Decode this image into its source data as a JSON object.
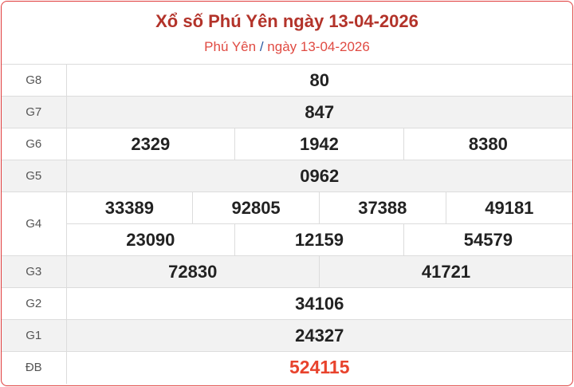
{
  "header": {
    "title": "Xổ số Phú Yên ngày 13-04-2026",
    "province": "Phú Yên",
    "separator": "/",
    "date": "ngày 13-04-2026"
  },
  "prizes": {
    "G8": {
      "label": "G8",
      "values": [
        "80"
      ]
    },
    "G7": {
      "label": "G7",
      "values": [
        "847"
      ]
    },
    "G6": {
      "label": "G6",
      "values": [
        "2329",
        "1942",
        "8380"
      ]
    },
    "G5": {
      "label": "G5",
      "values": [
        "0962"
      ]
    },
    "G4": {
      "label": "G4",
      "values": [
        "33389",
        "92805",
        "37388",
        "49181",
        "23090",
        "12159",
        "54579"
      ]
    },
    "G3": {
      "label": "G3",
      "values": [
        "72830",
        "41721"
      ]
    },
    "G2": {
      "label": "G2",
      "values": [
        "34106"
      ]
    },
    "G1": {
      "label": "G1",
      "values": [
        "24327"
      ]
    },
    "DB": {
      "label": "ĐB",
      "values": [
        "524115"
      ]
    }
  },
  "colors": {
    "title": "#b3332a",
    "special": "#e8432d",
    "border": "#e03a3a"
  }
}
